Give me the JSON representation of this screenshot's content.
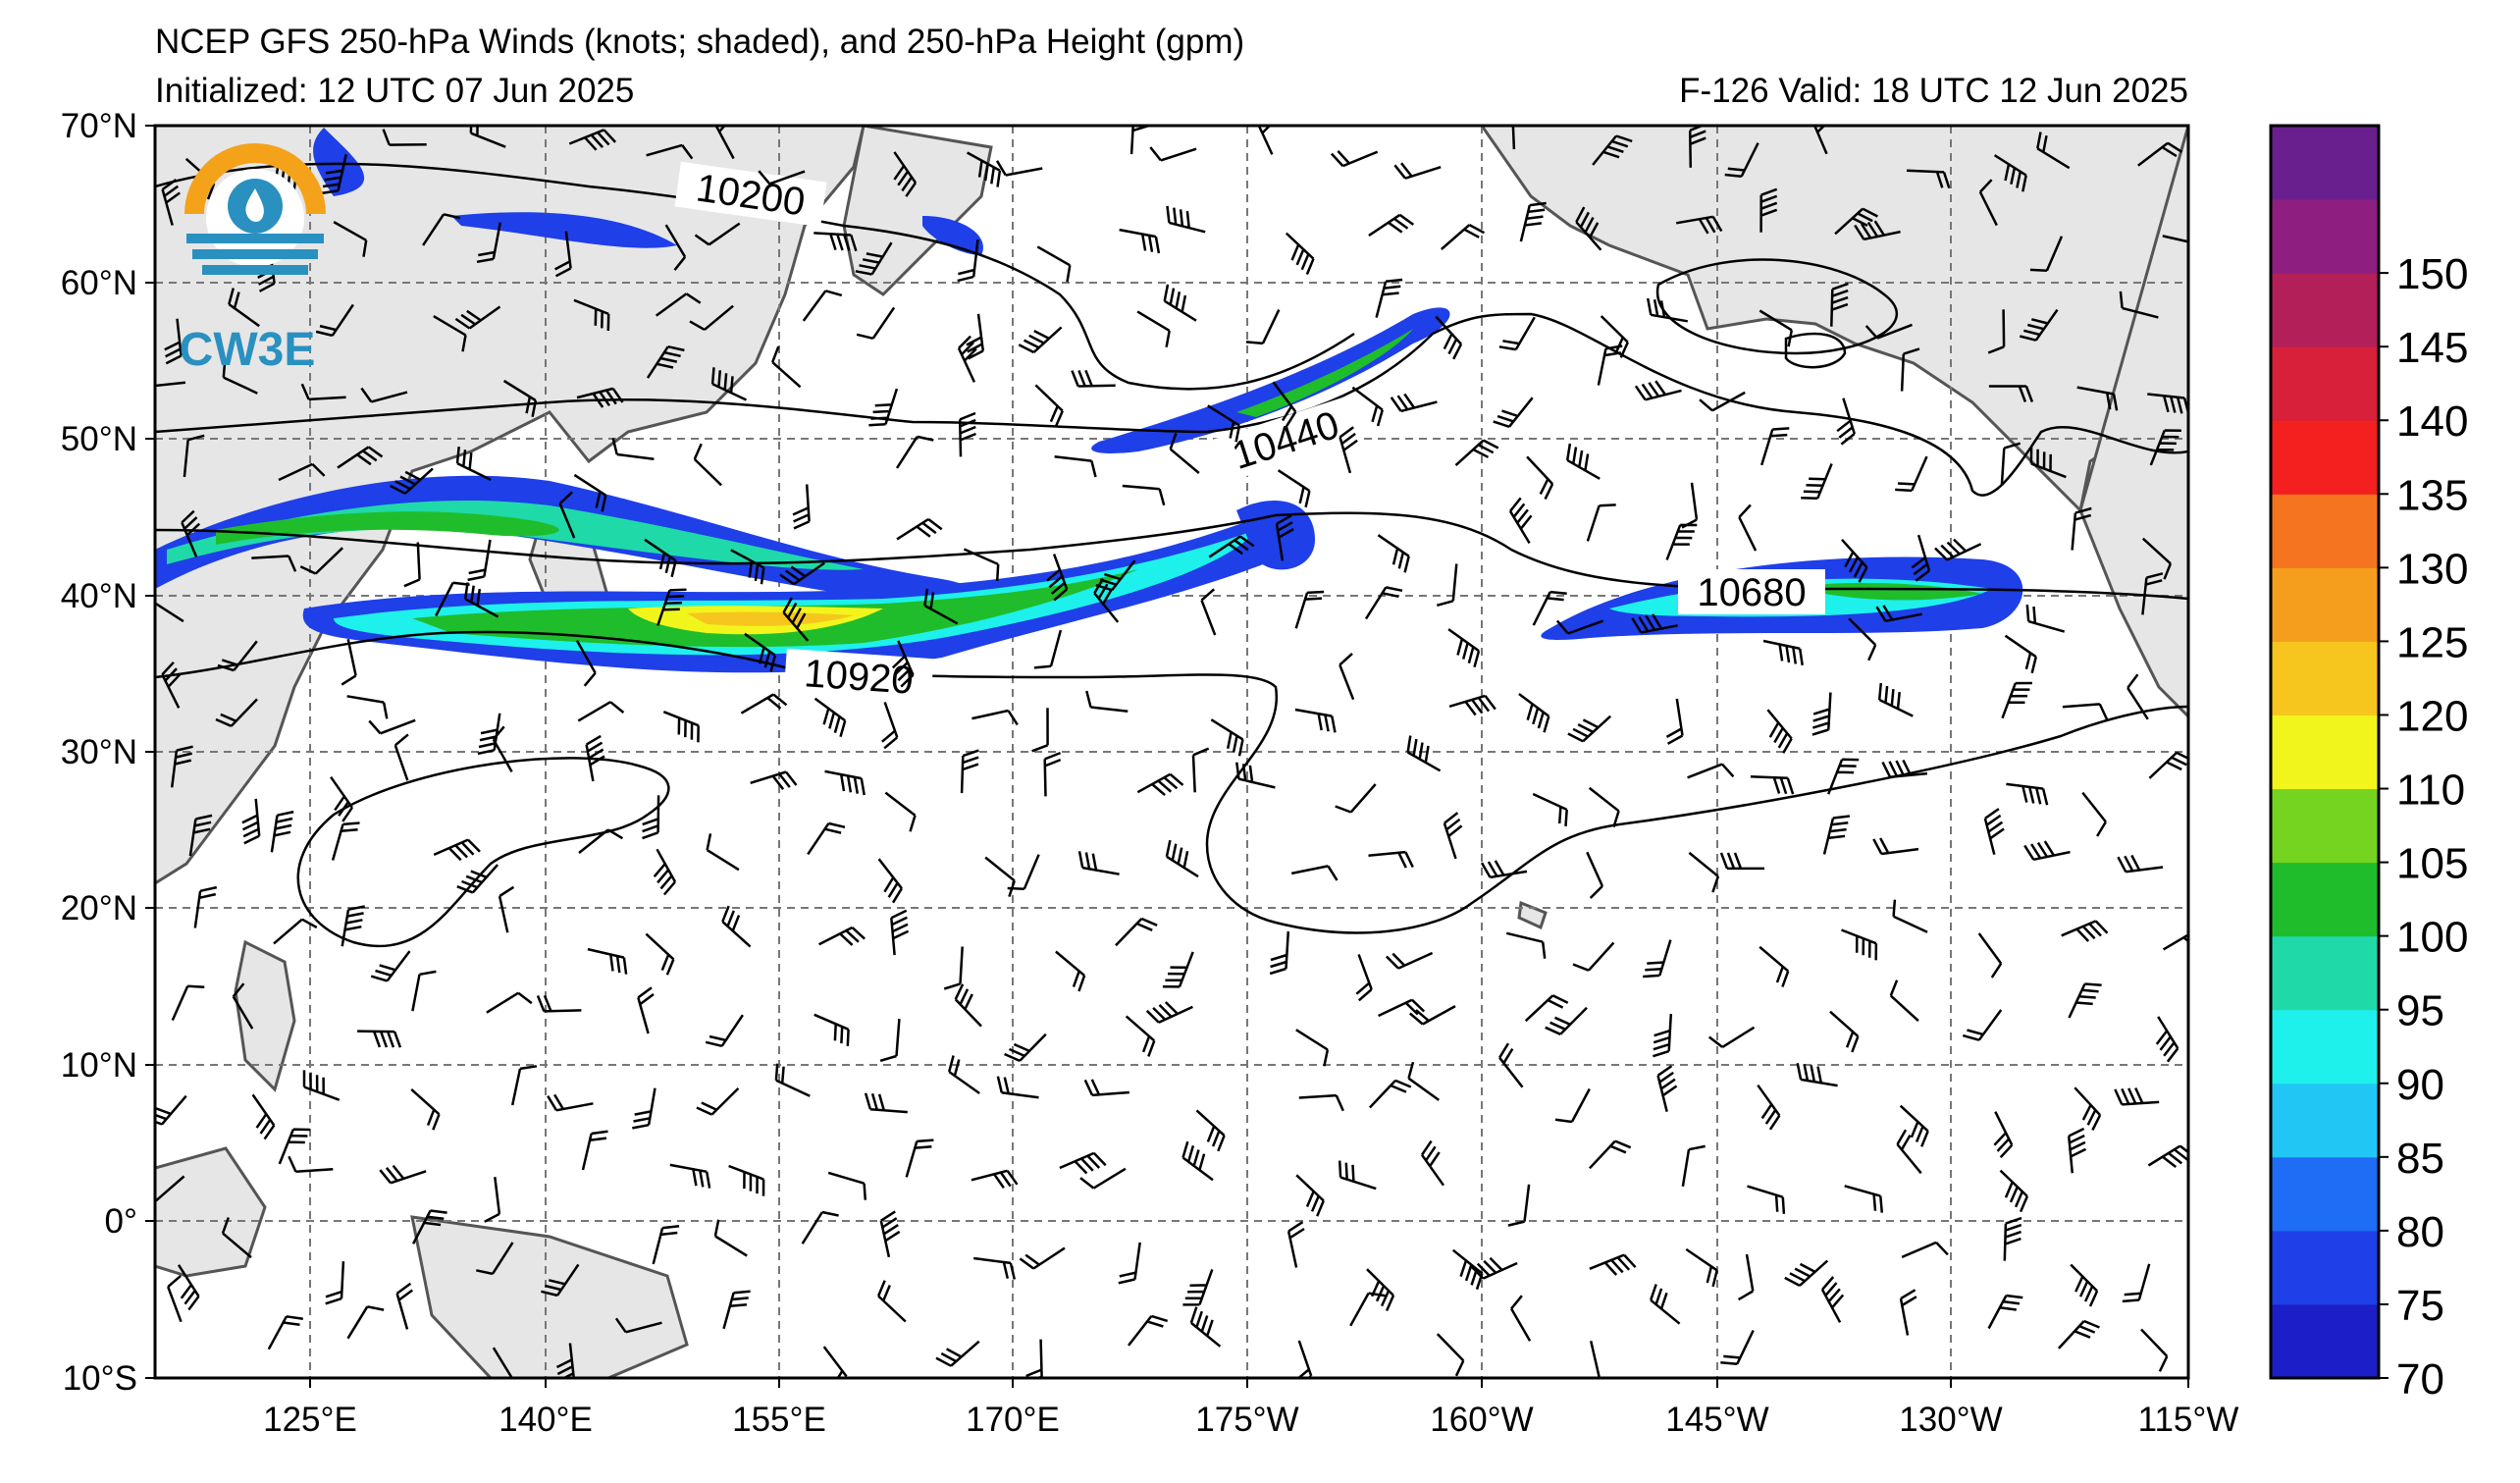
{
  "header": {
    "title": "NCEP GFS 250-hPa Winds (knots; shaded), and 250-hPa Height (gpm)",
    "initialized": "Initialized: 12 UTC 07 Jun 2025",
    "valid": "F-126  Valid: 18 UTC 12 Jun 2025"
  },
  "logo": {
    "text": "CW3E",
    "ring_color": "#f5a21b",
    "water_color": "#2a90c0"
  },
  "map": {
    "lat_labels": [
      "70°N",
      "60°N",
      "50°N",
      "40°N",
      "30°N",
      "20°N",
      "10°N",
      "0°",
      "10°S"
    ],
    "lon_labels": [
      "125°E",
      "140°E",
      "155°E",
      "170°E",
      "175°W",
      "160°W",
      "145°W",
      "130°W",
      "115°W"
    ],
    "contour_labels": [
      "10200",
      "10440",
      "10680",
      "10920"
    ],
    "land_color": "#e6e6e6",
    "ocean_color": "#ffffff",
    "grid": true
  },
  "colorbar": {
    "tick_labels": [
      "70",
      "75",
      "80",
      "85",
      "90",
      "95",
      "100",
      "105",
      "110",
      "120",
      "125",
      "130",
      "135",
      "140",
      "145",
      "150"
    ],
    "colors": [
      "#1c1fc7",
      "#1f3fe8",
      "#1f6cf5",
      "#22c6f5",
      "#1ef0ec",
      "#1fd9a9",
      "#1fbd2b",
      "#75d41f",
      "#f2f51c",
      "#f7c61e",
      "#f59e1e",
      "#f4741f",
      "#f41f1f",
      "#d8203a",
      "#b31f59",
      "#8e1f80",
      "#6a1f8f"
    ]
  }
}
